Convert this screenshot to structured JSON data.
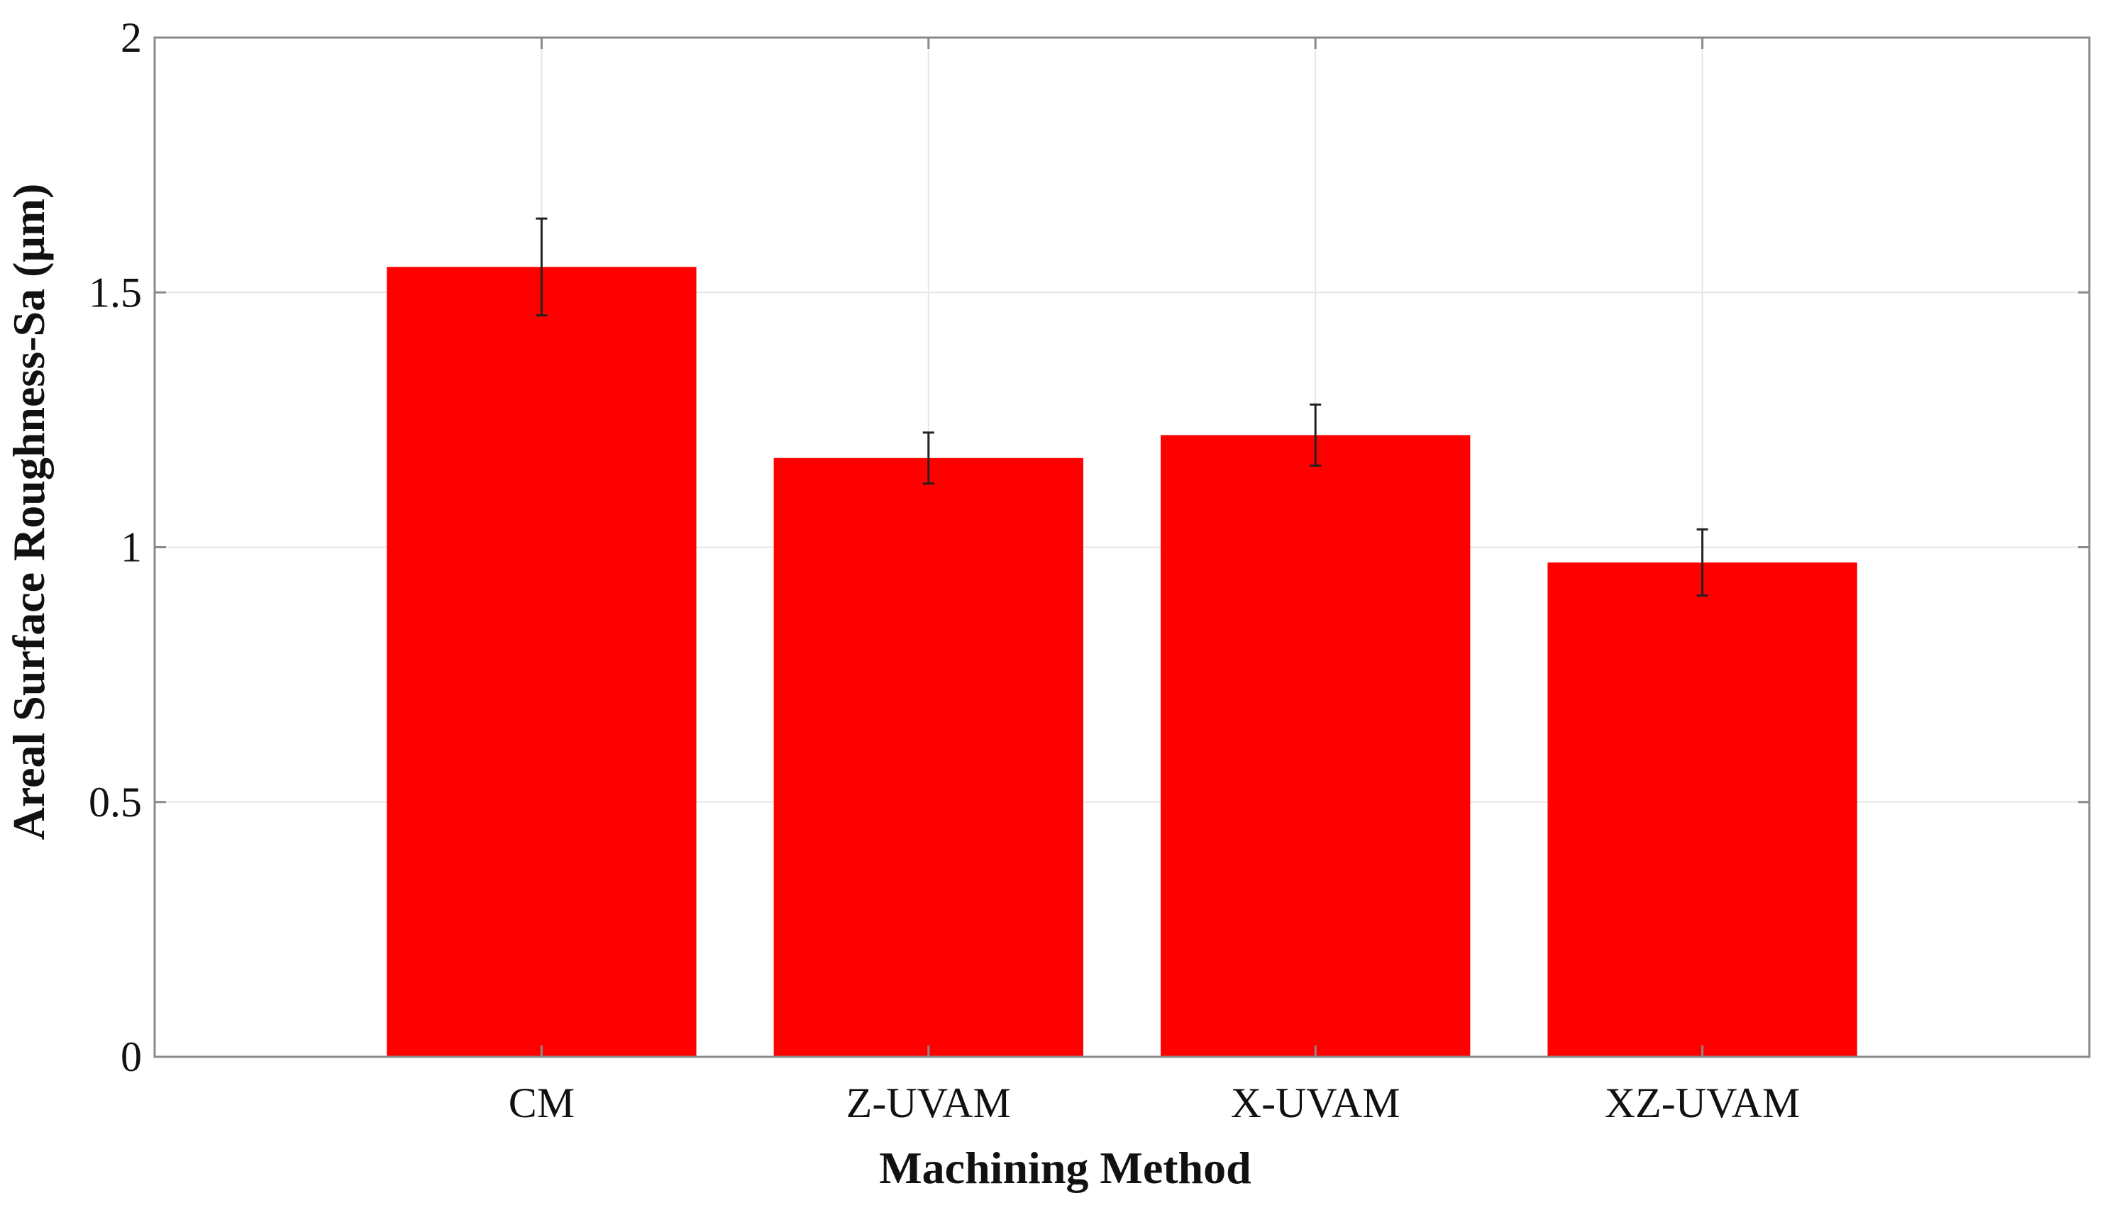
{
  "chart_data": {
    "type": "bar",
    "title": "",
    "xlabel": "Machining Method",
    "ylabel": "Areal Surface Roughness-Sa (μm)",
    "categories": [
      "CM",
      "Z-UVAM",
      "X-UVAM",
      "XZ-UVAM"
    ],
    "series": [
      {
        "values": [
          1.55,
          1.175,
          1.22,
          0.97
        ],
        "error": [
          0.095,
          0.05,
          0.06,
          0.065
        ]
      }
    ],
    "ylim": [
      0,
      2
    ],
    "xlim": [
      0,
      5
    ],
    "yticks": [
      0,
      0.5,
      1,
      1.5,
      2
    ],
    "ytick_labels": [
      "0",
      "0.5",
      "1",
      "1.5",
      "2"
    ],
    "grid": true,
    "legend": "none",
    "colors": {
      "bar": "#ff0000",
      "grid": "#e6e6e6",
      "axis": "#8a8a8a",
      "errorbar": "#222222"
    }
  }
}
